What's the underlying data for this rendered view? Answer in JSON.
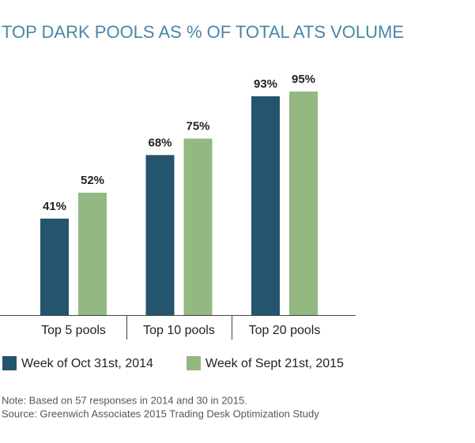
{
  "chart_data": {
    "type": "bar",
    "title": "TOP DARK POOLS AS % OF TOTAL ATS VOLUME",
    "categories": [
      "Top 5 pools",
      "Top 10 pools",
      "Top 20 pools"
    ],
    "series": [
      {
        "name": "Week of Oct 31st, 2014",
        "color": "#24546e",
        "values": [
          41,
          68,
          93
        ],
        "value_labels": [
          "41%",
          "68%",
          "93%"
        ]
      },
      {
        "name": "Week of Sept 21st, 2015",
        "color": "#94b882",
        "values": [
          52,
          75,
          95
        ],
        "value_labels": [
          "52%",
          "75%",
          "95%"
        ]
      }
    ],
    "notes": [
      "Note: Based on 57 responses in 2014 and 30 in 2015.",
      "Source: Greenwich Associates 2015 Trading Desk Optimization Study"
    ]
  }
}
